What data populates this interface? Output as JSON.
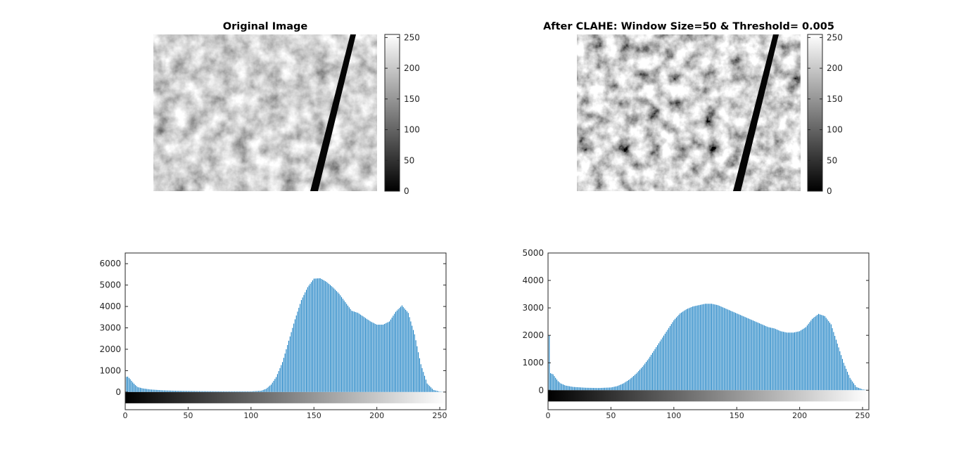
{
  "chart_data": [
    {
      "type": "heatmap",
      "title": "Original Image",
      "image": "grayscale electron micrograph with a dark diagonal streak",
      "colorbar": {
        "ticks": [
          0,
          50,
          100,
          150,
          200,
          250
        ],
        "range": [
          0,
          255
        ],
        "colormap": "gray"
      }
    },
    {
      "type": "heatmap",
      "title": "After CLAHE: Window Size=50 & Threshold= 0.005",
      "image": "contrast-enhanced grayscale electron micrograph with a dark diagonal streak",
      "colorbar": {
        "ticks": [
          0,
          50,
          100,
          150,
          200,
          250
        ],
        "range": [
          0,
          255
        ],
        "colormap": "gray"
      }
    },
    {
      "type": "bar",
      "title": "",
      "bins": 256,
      "xlim": [
        0,
        255
      ],
      "ylim": [
        -300,
        6500
      ],
      "xticks": [
        0,
        50,
        100,
        150,
        200,
        250
      ],
      "yticks": [
        0,
        1000,
        2000,
        3000,
        4000,
        5000,
        6000
      ],
      "bar_color": "#0072BD",
      "profile_points": [
        [
          0,
          700
        ],
        [
          2,
          720
        ],
        [
          4,
          600
        ],
        [
          6,
          450
        ],
        [
          8,
          330
        ],
        [
          10,
          230
        ],
        [
          14,
          170
        ],
        [
          20,
          120
        ],
        [
          30,
          80
        ],
        [
          40,
          60
        ],
        [
          60,
          40
        ],
        [
          80,
          30
        ],
        [
          100,
          30
        ],
        [
          108,
          60
        ],
        [
          112,
          150
        ],
        [
          116,
          350
        ],
        [
          120,
          700
        ],
        [
          125,
          1400
        ],
        [
          130,
          2400
        ],
        [
          135,
          3400
        ],
        [
          140,
          4300
        ],
        [
          145,
          4900
        ],
        [
          150,
          5300
        ],
        [
          155,
          5320
        ],
        [
          160,
          5150
        ],
        [
          165,
          4900
        ],
        [
          170,
          4600
        ],
        [
          175,
          4200
        ],
        [
          180,
          3800
        ],
        [
          185,
          3700
        ],
        [
          190,
          3500
        ],
        [
          195,
          3300
        ],
        [
          200,
          3150
        ],
        [
          205,
          3150
        ],
        [
          210,
          3300
        ],
        [
          215,
          3750
        ],
        [
          220,
          4050
        ],
        [
          225,
          3700
        ],
        [
          230,
          2700
        ],
        [
          235,
          1300
        ],
        [
          240,
          400
        ],
        [
          245,
          100
        ],
        [
          250,
          20
        ],
        [
          255,
          0
        ]
      ]
    },
    {
      "type": "bar",
      "title": "",
      "bins": 256,
      "xlim": [
        0,
        255
      ],
      "ylim": [
        -300,
        5000
      ],
      "xticks": [
        0,
        50,
        100,
        150,
        200,
        250
      ],
      "yticks": [
        0,
        1000,
        2000,
        3000,
        4000,
        5000
      ],
      "bar_color": "#0072BD",
      "spikes": [
        [
          1,
          2000
        ]
      ],
      "profile_points": [
        [
          0,
          600
        ],
        [
          2,
          620
        ],
        [
          4,
          580
        ],
        [
          6,
          450
        ],
        [
          8,
          330
        ],
        [
          10,
          250
        ],
        [
          14,
          170
        ],
        [
          20,
          120
        ],
        [
          30,
          90
        ],
        [
          40,
          80
        ],
        [
          50,
          100
        ],
        [
          55,
          150
        ],
        [
          60,
          250
        ],
        [
          65,
          400
        ],
        [
          70,
          600
        ],
        [
          75,
          850
        ],
        [
          80,
          1150
        ],
        [
          85,
          1500
        ],
        [
          90,
          1850
        ],
        [
          95,
          2200
        ],
        [
          100,
          2550
        ],
        [
          105,
          2800
        ],
        [
          110,
          2950
        ],
        [
          115,
          3050
        ],
        [
          120,
          3100
        ],
        [
          125,
          3150
        ],
        [
          130,
          3150
        ],
        [
          135,
          3100
        ],
        [
          140,
          3000
        ],
        [
          145,
          2900
        ],
        [
          150,
          2800
        ],
        [
          155,
          2700
        ],
        [
          160,
          2600
        ],
        [
          165,
          2500
        ],
        [
          170,
          2400
        ],
        [
          175,
          2300
        ],
        [
          180,
          2250
        ],
        [
          185,
          2150
        ],
        [
          190,
          2100
        ],
        [
          195,
          2100
        ],
        [
          200,
          2150
        ],
        [
          205,
          2300
        ],
        [
          210,
          2600
        ],
        [
          215,
          2780
        ],
        [
          220,
          2700
        ],
        [
          225,
          2400
        ],
        [
          230,
          1700
        ],
        [
          235,
          1000
        ],
        [
          240,
          450
        ],
        [
          245,
          120
        ],
        [
          250,
          30
        ],
        [
          255,
          0
        ]
      ]
    }
  ]
}
